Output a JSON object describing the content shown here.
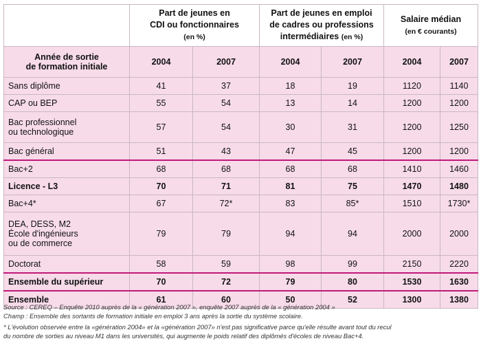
{
  "header": {
    "group1": {
      "title_l1": "Part de jeunes en",
      "title_l2": "CDI ou fonctionnaires",
      "unit": "(en %)"
    },
    "group2": {
      "title_l1": "Part de jeunes en emploi",
      "title_l2": "de cadres ou professions",
      "title_l3": "intermédiaires",
      "unit": "(en %)"
    },
    "group3": {
      "title_l1": "Salaire médian",
      "unit": "(en € courants)"
    },
    "row_label_l1": "Année de sortie",
    "row_label_l2": "de formation initiale",
    "years": [
      "2004",
      "2007",
      "2004",
      "2007",
      "2004",
      "2007"
    ]
  },
  "rows": [
    {
      "label": [
        "Sans diplôme"
      ],
      "values": [
        "41",
        "37",
        "18",
        "19",
        "1120",
        "1140"
      ]
    },
    {
      "label": [
        "CAP ou BEP"
      ],
      "values": [
        "55",
        "54",
        "13",
        "14",
        "1200",
        "1200"
      ]
    },
    {
      "label": [
        "Bac professionnel",
        "ou technologique"
      ],
      "values": [
        "57",
        "54",
        "30",
        "31",
        "1200",
        "1250"
      ]
    },
    {
      "label": [
        "Bac général"
      ],
      "values": [
        "51",
        "43",
        "47",
        "45",
        "1200",
        "1200"
      ]
    },
    {
      "label": [
        "Bac+2"
      ],
      "values": [
        "68",
        "68",
        "68",
        "68",
        "1410",
        "1460"
      ]
    },
    {
      "label": [
        "Licence - L3"
      ],
      "values": [
        "70",
        "71",
        "81",
        "75",
        "1470",
        "1480"
      ]
    },
    {
      "label": [
        "Bac+4*"
      ],
      "values": [
        "67",
        "72*",
        "83",
        "85*",
        "1510",
        "1730*"
      ]
    },
    {
      "label": [
        "DEA, DESS, M2",
        "École d'ingénieurs",
        "ou de commerce"
      ],
      "values": [
        "79",
        "79",
        "94",
        "94",
        "2000",
        "2000"
      ]
    },
    {
      "label": [
        "Doctorat"
      ],
      "values": [
        "58",
        "59",
        "98",
        "99",
        "2150",
        "2220"
      ]
    },
    {
      "label": [
        "Ensemble du supérieur"
      ],
      "values": [
        "70",
        "72",
        "79",
        "80",
        "1530",
        "1630"
      ]
    },
    {
      "label": [
        "Ensemble"
      ],
      "values": [
        "61",
        "60",
        "50",
        "52",
        "1300",
        "1380"
      ]
    }
  ],
  "notes": {
    "source": "Source : CEREQ – Enquête 2010 auprès de la « génération 2007 », enquête 2007 auprès de la « génération 2004 »",
    "champ": "Champ : Ensemble des sortants de formation initiale en emploi 3 ans après la sortie du système scolaire.",
    "footnote_l1": "* L'évolution observée entre la «génération 2004» et la «génération 2007» n'est pas significative parce qu'elle résulte avant tout du recul",
    "footnote_l2": "du nombre de sorties au niveau M1 dans les universités, qui augmente le poids relatif des diplômés d'écoles de niveau Bac+4."
  },
  "colors": {
    "row_bg": "#f7dbe9",
    "separator": "#c0187a",
    "border": "#c9b7c2"
  }
}
